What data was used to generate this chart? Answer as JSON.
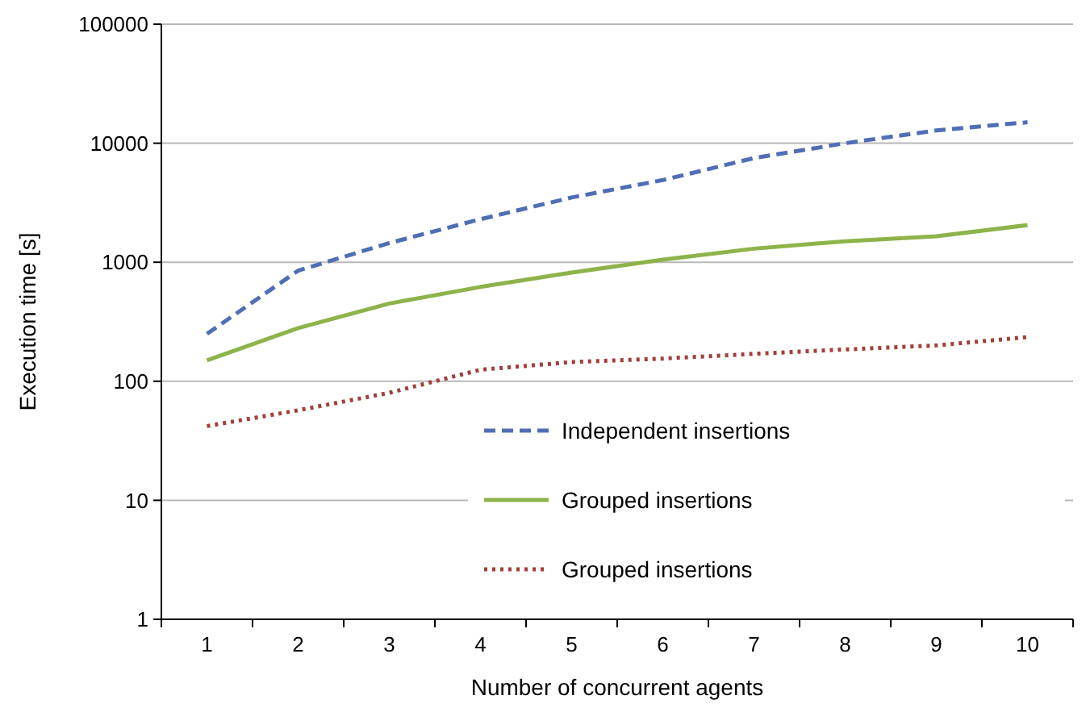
{
  "chart_data": {
    "type": "line",
    "xlabel": "Number of concurrent agents",
    "ylabel": "Execution time [s]",
    "categories": [
      "1",
      "2",
      "3",
      "4",
      "5",
      "6",
      "7",
      "8",
      "9",
      "10"
    ],
    "log": "y",
    "ylim": [
      1,
      100000
    ],
    "yticks": [
      1,
      10,
      100,
      1000,
      10000,
      100000
    ],
    "grid": "y",
    "legend": "bottom right",
    "marker": "none",
    "series": [
      {
        "name": "Independent insertions",
        "color": "#4f6eb5",
        "line_style": "dashed",
        "values": [
          250,
          850,
          1450,
          2300,
          3500,
          4900,
          7500,
          10000,
          12800,
          15000
        ]
      },
      {
        "name": "Grouped insertions",
        "color": "#8db34a",
        "line_style": "solid",
        "values": [
          150,
          280,
          450,
          620,
          820,
          1050,
          1300,
          1500,
          1650,
          2050
        ]
      },
      {
        "name": "Grouped insertions",
        "color": "#a0403a",
        "line_style": "dotted",
        "values": [
          42,
          57,
          80,
          125,
          145,
          155,
          170,
          185,
          200,
          235
        ]
      }
    ]
  }
}
